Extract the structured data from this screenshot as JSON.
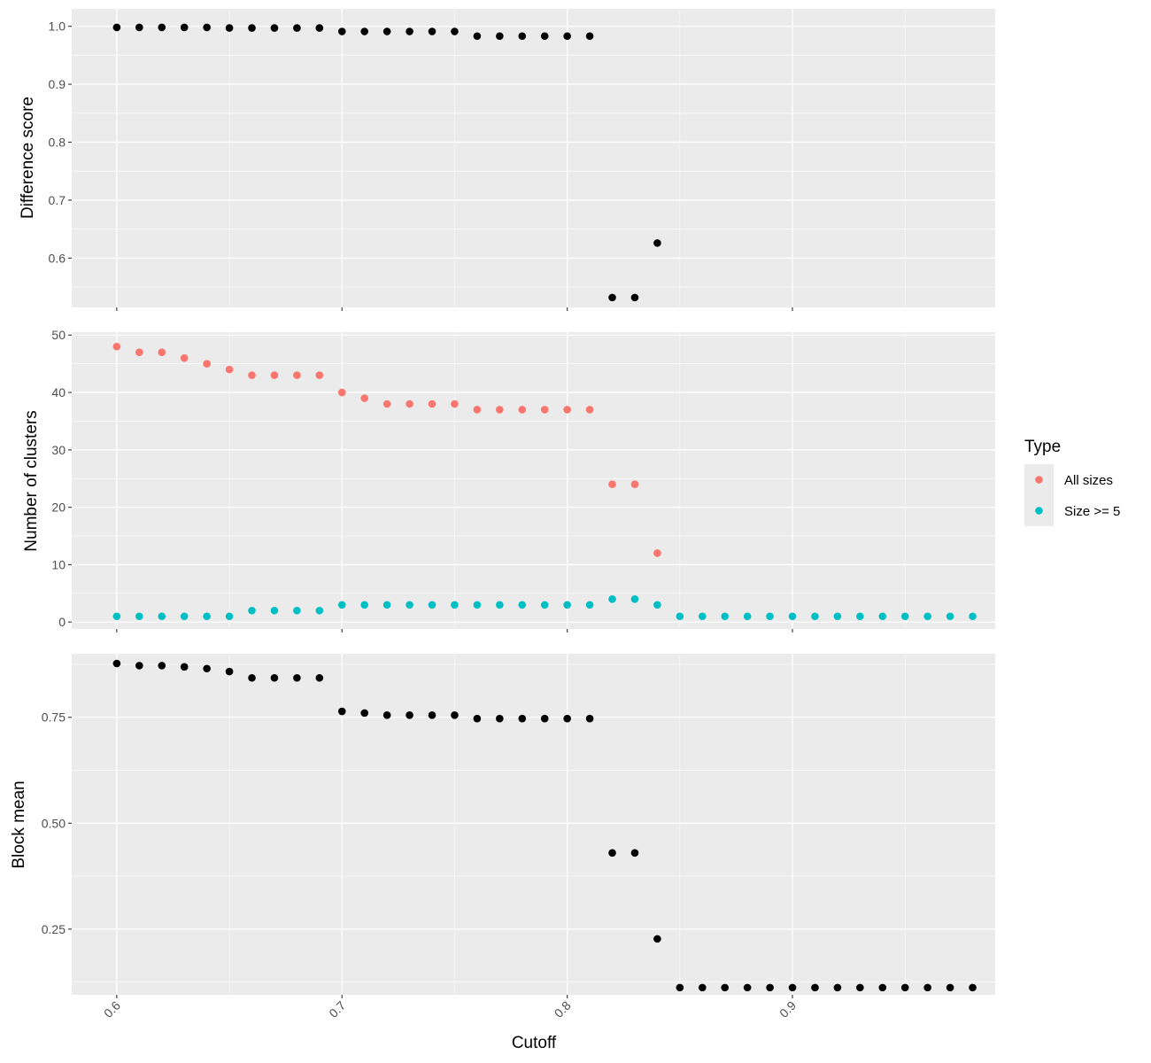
{
  "chart_data": [
    {
      "type": "scatter",
      "ylabel": "Difference score",
      "ylim": [
        0.515,
        1.03
      ],
      "ybreaks": [
        0.6,
        0.7,
        0.8,
        0.9,
        1.0
      ],
      "ytick_labels": [
        "0.6",
        "0.7",
        "0.8",
        "0.9",
        "1.0"
      ],
      "xlim": [
        0.58,
        0.99
      ],
      "xbreaks": [
        0.6,
        0.7,
        0.8,
        0.9
      ],
      "grid": true,
      "series": [
        {
          "color": "#000000",
          "x": [
            0.6,
            0.61,
            0.62,
            0.63,
            0.64,
            0.65,
            0.66,
            0.67,
            0.68,
            0.69,
            0.7,
            0.71,
            0.72,
            0.73,
            0.74,
            0.75,
            0.76,
            0.77,
            0.78,
            0.79,
            0.8,
            0.81,
            0.82,
            0.83,
            0.84
          ],
          "y": [
            0.998,
            0.998,
            0.998,
            0.998,
            0.998,
            0.997,
            0.997,
            0.997,
            0.997,
            0.997,
            0.991,
            0.991,
            0.991,
            0.991,
            0.991,
            0.991,
            0.983,
            0.983,
            0.983,
            0.983,
            0.983,
            0.983,
            0.532,
            0.532,
            0.626
          ]
        }
      ]
    },
    {
      "type": "scatter",
      "ylabel": "Number of clusters",
      "ylim": [
        -1.2,
        50.5
      ],
      "ybreaks": [
        0,
        10,
        20,
        30,
        40,
        50
      ],
      "ytick_labels": [
        "0",
        "10",
        "20",
        "30",
        "40",
        "50"
      ],
      "xlim": [
        0.58,
        0.99
      ],
      "xbreaks": [
        0.6,
        0.7,
        0.8,
        0.9
      ],
      "grid": true,
      "legend_placement": "right",
      "series": [
        {
          "name": "All sizes",
          "color": "#F8766D",
          "x": [
            0.6,
            0.61,
            0.62,
            0.63,
            0.64,
            0.65,
            0.66,
            0.67,
            0.68,
            0.69,
            0.7,
            0.71,
            0.72,
            0.73,
            0.74,
            0.75,
            0.76,
            0.77,
            0.78,
            0.79,
            0.8,
            0.81,
            0.82,
            0.83,
            0.84
          ],
          "y": [
            48,
            47,
            47,
            46,
            45,
            44,
            43,
            43,
            43,
            43,
            40,
            39,
            38,
            38,
            38,
            38,
            37,
            37,
            37,
            37,
            37,
            37,
            24,
            24,
            12
          ]
        },
        {
          "name": "Size >= 5",
          "color": "#00BFC4",
          "x": [
            0.6,
            0.61,
            0.62,
            0.63,
            0.64,
            0.65,
            0.66,
            0.67,
            0.68,
            0.69,
            0.7,
            0.71,
            0.72,
            0.73,
            0.74,
            0.75,
            0.76,
            0.77,
            0.78,
            0.79,
            0.8,
            0.81,
            0.82,
            0.83,
            0.84,
            0.85,
            0.86,
            0.87,
            0.88,
            0.89,
            0.9,
            0.91,
            0.92,
            0.93,
            0.94,
            0.95,
            0.96,
            0.97,
            0.98
          ],
          "y": [
            1,
            1,
            1,
            1,
            1,
            1,
            2,
            2,
            2,
            2,
            3,
            3,
            3,
            3,
            3,
            3,
            3,
            3,
            3,
            3,
            3,
            3,
            4,
            4,
            3,
            1,
            1,
            1,
            1,
            1,
            1,
            1,
            1,
            1,
            1,
            1,
            1,
            1,
            1
          ]
        }
      ]
    },
    {
      "type": "scatter",
      "ylabel": "Block mean",
      "ylim": [
        0.095,
        0.9
      ],
      "ybreaks": [
        0.25,
        0.5,
        0.75
      ],
      "ytick_labels": [
        "0.25",
        "0.50",
        "0.75"
      ],
      "xlim": [
        0.58,
        0.99
      ],
      "xbreaks": [
        0.6,
        0.7,
        0.8,
        0.9
      ],
      "xtick_labels": [
        "0.6",
        "0.7",
        "0.8",
        "0.9"
      ],
      "xlabel": "Cutoff",
      "grid": true,
      "series": [
        {
          "color": "#000000",
          "x": [
            0.6,
            0.61,
            0.62,
            0.63,
            0.64,
            0.65,
            0.66,
            0.67,
            0.68,
            0.69,
            0.7,
            0.71,
            0.72,
            0.73,
            0.74,
            0.75,
            0.76,
            0.77,
            0.78,
            0.79,
            0.8,
            0.81,
            0.82,
            0.83,
            0.84,
            0.85,
            0.86,
            0.87,
            0.88,
            0.89,
            0.9,
            0.91,
            0.92,
            0.93,
            0.94,
            0.95,
            0.96,
            0.97,
            0.98
          ],
          "y": [
            0.877,
            0.872,
            0.872,
            0.869,
            0.865,
            0.858,
            0.843,
            0.843,
            0.843,
            0.843,
            0.764,
            0.76,
            0.755,
            0.755,
            0.755,
            0.755,
            0.747,
            0.747,
            0.747,
            0.747,
            0.747,
            0.747,
            0.43,
            0.43,
            0.227,
            0.112,
            0.112,
            0.112,
            0.112,
            0.112,
            0.112,
            0.112,
            0.112,
            0.112,
            0.112,
            0.112,
            0.112,
            0.112,
            0.112
          ]
        }
      ]
    }
  ],
  "legend": {
    "title": "Type",
    "items": [
      {
        "label": "All sizes",
        "color": "#F8766D"
      },
      {
        "label": "Size >= 5",
        "color": "#00BFC4"
      }
    ]
  }
}
